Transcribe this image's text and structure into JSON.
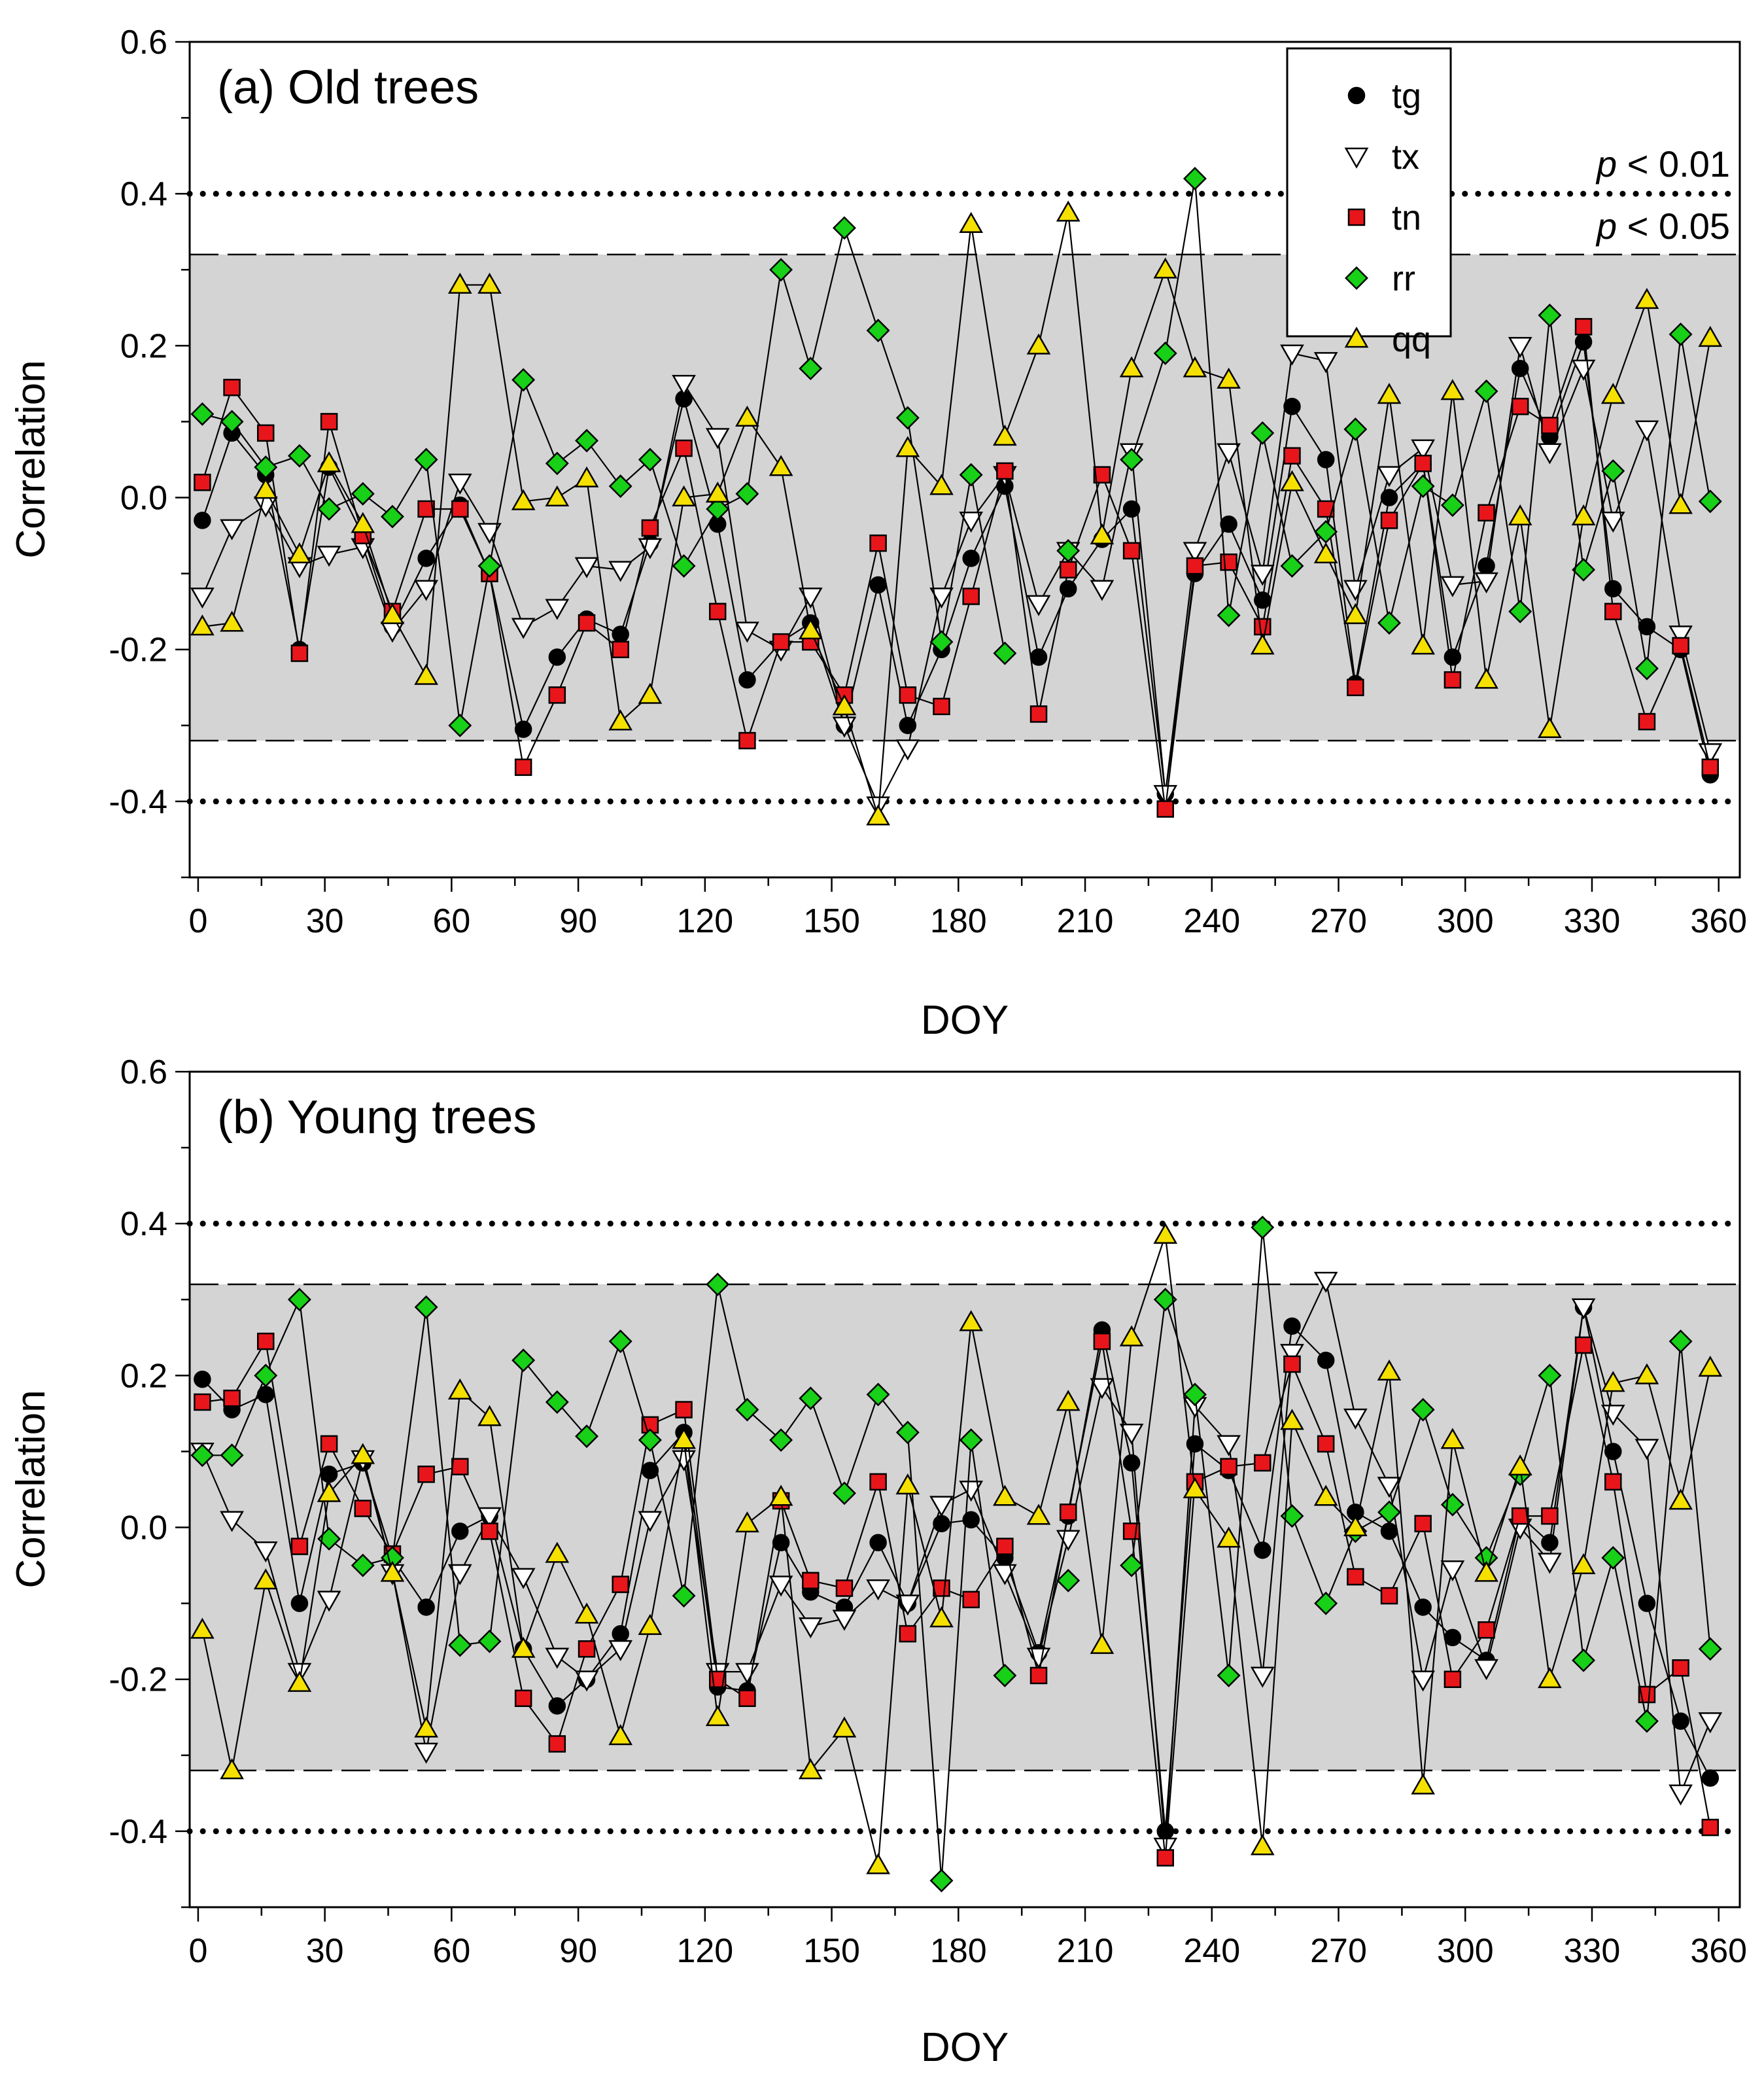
{
  "chart_data": [
    {
      "type": "scatter",
      "title": "(a) Old trees",
      "xlabel": "DOY",
      "ylabel": "Correlation",
      "xlim": [
        -2,
        365
      ],
      "ylim": [
        -0.5,
        0.6
      ],
      "xticks": [
        0,
        30,
        60,
        90,
        120,
        150,
        180,
        210,
        240,
        270,
        300,
        330,
        360
      ],
      "yticks": [
        -0.4,
        -0.2,
        0.0,
        0.2,
        0.4,
        0.6
      ],
      "ytick_labels": [
        "-0.4",
        "-0.2",
        "0.0",
        "0.2",
        "0.4",
        "0.6"
      ],
      "shaded_band": [
        -0.32,
        0.32
      ],
      "sig_lines": [
        {
          "value": 0.4,
          "style": "dotted",
          "label_italic": "p",
          "label_rest": " < 0.01"
        },
        {
          "value": 0.32,
          "style": "dashed",
          "label_italic": "p",
          "label_rest": " < 0.05"
        },
        {
          "value": -0.32,
          "style": "dashed"
        },
        {
          "value": -0.4,
          "style": "dotted"
        }
      ],
      "legend_position": "top-right",
      "x": [
        1,
        8,
        16,
        24,
        31,
        39,
        46,
        54,
        62,
        69,
        77,
        85,
        92,
        100,
        107,
        115,
        123,
        130,
        138,
        145,
        153,
        161,
        168,
        176,
        183,
        191,
        199,
        206,
        214,
        221,
        229,
        236,
        244,
        252,
        259,
        267,
        274,
        282,
        290,
        297,
        305,
        313,
        320,
        328,
        335,
        343,
        351,
        358
      ],
      "series": [
        {
          "name": "tg",
          "marker": "circle",
          "color": "#000000",
          "values": [
            -0.03,
            0.085,
            0.03,
            -0.2,
            0.04,
            -0.05,
            -0.17,
            -0.08,
            -0.01,
            -0.1,
            -0.305,
            -0.21,
            -0.16,
            -0.18,
            -0.06,
            0.13,
            -0.035,
            -0.24,
            -0.19,
            -0.165,
            -0.3,
            -0.115,
            -0.3,
            -0.2,
            -0.08,
            0.015,
            -0.21,
            -0.12,
            -0.055,
            -0.015,
            -0.39,
            -0.1,
            -0.035,
            -0.135,
            0.12,
            0.05,
            -0.245,
            0.0,
            0.045,
            -0.21,
            -0.09,
            0.17,
            0.08,
            0.205,
            -0.12,
            -0.17,
            -0.2,
            -0.365
          ]
        },
        {
          "name": "tx",
          "marker": "triangle-down",
          "color": "#ffffff",
          "values": [
            -0.13,
            -0.04,
            -0.01,
            -0.09,
            -0.075,
            -0.065,
            -0.175,
            -0.12,
            0.02,
            -0.045,
            -0.17,
            -0.145,
            -0.09,
            -0.095,
            -0.065,
            0.15,
            0.08,
            -0.175,
            -0.2,
            -0.13,
            -0.3,
            -0.405,
            -0.33,
            -0.13,
            -0.03,
            0.03,
            -0.14,
            -0.07,
            -0.12,
            0.06,
            -0.39,
            -0.07,
            0.06,
            -0.1,
            0.19,
            0.18,
            -0.12,
            0.03,
            0.065,
            -0.115,
            -0.11,
            0.2,
            0.06,
            0.17,
            -0.03,
            0.09,
            -0.18,
            -0.335
          ]
        },
        {
          "name": "tn",
          "marker": "square",
          "color": "#e8161b",
          "values": [
            0.02,
            0.145,
            0.085,
            -0.205,
            0.1,
            -0.05,
            -0.15,
            -0.015,
            -0.015,
            -0.1,
            -0.355,
            -0.26,
            -0.165,
            -0.2,
            -0.04,
            0.065,
            -0.15,
            -0.32,
            -0.19,
            -0.19,
            -0.26,
            -0.06,
            -0.26,
            -0.275,
            -0.13,
            0.035,
            -0.285,
            -0.095,
            0.03,
            -0.07,
            -0.41,
            -0.09,
            -0.085,
            -0.17,
            0.055,
            -0.015,
            -0.25,
            -0.03,
            0.045,
            -0.24,
            -0.02,
            0.12,
            0.095,
            0.225,
            -0.15,
            -0.295,
            -0.195,
            -0.355
          ]
        },
        {
          "name": "rr",
          "marker": "diamond",
          "color": "#17d017",
          "values": [
            0.11,
            0.1,
            0.04,
            0.055,
            -0.015,
            0.005,
            -0.025,
            0.05,
            -0.3,
            -0.09,
            0.155,
            0.045,
            0.075,
            0.015,
            0.05,
            -0.09,
            -0.015,
            0.005,
            0.3,
            0.17,
            0.355,
            0.22,
            0.105,
            -0.19,
            0.03,
            -0.205,
            null,
            -0.07,
            null,
            0.05,
            0.19,
            0.42,
            -0.155,
            0.085,
            -0.09,
            -0.045,
            0.09,
            -0.165,
            0.015,
            -0.01,
            0.14,
            -0.15,
            0.24,
            -0.095,
            0.035,
            -0.225,
            0.215,
            -0.005
          ]
        },
        {
          "name": "qq",
          "marker": "triangle-up",
          "color": "#f5e000",
          "values": [
            -0.17,
            -0.165,
            0.01,
            -0.075,
            0.045,
            -0.035,
            -0.155,
            -0.235,
            0.28,
            0.28,
            -0.005,
            0.0,
            0.025,
            -0.295,
            -0.26,
            0.0,
            0.005,
            0.105,
            0.04,
            -0.175,
            -0.275,
            -0.42,
            0.065,
            0.015,
            0.36,
            0.08,
            0.2,
            0.375,
            -0.05,
            0.17,
            0.3,
            0.17,
            0.155,
            -0.195,
            0.02,
            -0.075,
            -0.155,
            0.135,
            -0.195,
            0.14,
            -0.24,
            -0.025,
            -0.305,
            -0.025,
            0.135,
            0.26,
            -0.01,
            0.21
          ]
        }
      ]
    },
    {
      "type": "scatter",
      "title": "(b) Young trees",
      "xlabel": "DOY",
      "ylabel": "Correlation",
      "xlim": [
        -2,
        365
      ],
      "ylim": [
        -0.5,
        0.6
      ],
      "xticks": [
        0,
        30,
        60,
        90,
        120,
        150,
        180,
        210,
        240,
        270,
        300,
        330,
        360
      ],
      "yticks": [
        -0.4,
        -0.2,
        0.0,
        0.2,
        0.4,
        0.6
      ],
      "ytick_labels": [
        "-0.4",
        "-0.2",
        "0.0",
        "0.2",
        "0.4",
        "0.6"
      ],
      "shaded_band": [
        -0.32,
        0.32
      ],
      "sig_lines": [
        {
          "value": 0.4,
          "style": "dotted"
        },
        {
          "value": 0.32,
          "style": "dashed"
        },
        {
          "value": -0.32,
          "style": "dashed"
        },
        {
          "value": -0.4,
          "style": "dotted"
        }
      ],
      "x": [
        1,
        8,
        16,
        24,
        31,
        39,
        46,
        54,
        62,
        69,
        77,
        85,
        92,
        100,
        107,
        115,
        123,
        130,
        138,
        145,
        153,
        161,
        168,
        176,
        183,
        191,
        199,
        206,
        214,
        221,
        229,
        236,
        244,
        252,
        259,
        267,
        274,
        282,
        290,
        297,
        305,
        313,
        320,
        328,
        335,
        343,
        351,
        358
      ],
      "series": [
        {
          "name": "tg",
          "marker": "circle",
          "color": "#000000",
          "values": [
            0.195,
            0.155,
            0.175,
            -0.1,
            0.07,
            0.085,
            -0.04,
            -0.105,
            -0.005,
            0.015,
            -0.16,
            -0.235,
            -0.2,
            -0.14,
            0.075,
            0.125,
            -0.21,
            -0.215,
            -0.02,
            -0.085,
            -0.105,
            -0.02,
            -0.1,
            0.005,
            0.01,
            -0.04,
            -0.165,
            0.015,
            0.26,
            0.085,
            -0.4,
            0.11,
            0.075,
            -0.03,
            0.265,
            0.22,
            0.02,
            -0.005,
            -0.105,
            -0.145,
            -0.175,
            0.015,
            -0.02,
            0.29,
            0.1,
            -0.1,
            -0.255,
            -0.33
          ]
        },
        {
          "name": "tx",
          "marker": "triangle-down",
          "color": "#ffffff",
          "values": [
            0.1,
            0.01,
            -0.03,
            -0.19,
            -0.095,
            0.09,
            -0.06,
            -0.295,
            -0.06,
            0.015,
            -0.065,
            -0.17,
            -0.2,
            -0.16,
            0.01,
            0.09,
            -0.19,
            -0.19,
            -0.075,
            -0.13,
            -0.12,
            -0.08,
            -0.1,
            0.03,
            0.05,
            -0.06,
            -0.17,
            -0.015,
            0.185,
            0.125,
            -0.42,
            0.16,
            0.11,
            -0.195,
            0.23,
            0.325,
            0.145,
            0.055,
            -0.2,
            -0.055,
            -0.185,
            0.0,
            -0.045,
            0.29,
            0.15,
            0.105,
            -0.35,
            -0.255
          ]
        },
        {
          "name": "tn",
          "marker": "square",
          "color": "#e8161b",
          "values": [
            0.165,
            0.17,
            0.245,
            -0.025,
            0.11,
            0.025,
            -0.035,
            0.07,
            0.08,
            -0.005,
            -0.225,
            -0.285,
            -0.16,
            -0.075,
            0.135,
            0.155,
            -0.2,
            -0.225,
            0.035,
            -0.07,
            -0.08,
            0.06,
            -0.14,
            -0.08,
            -0.095,
            -0.025,
            -0.195,
            0.02,
            0.245,
            -0.005,
            -0.435,
            0.06,
            0.08,
            0.085,
            0.215,
            0.11,
            -0.065,
            -0.09,
            0.005,
            -0.2,
            -0.135,
            0.015,
            0.015,
            0.24,
            0.06,
            -0.22,
            -0.185,
            -0.395
          ]
        },
        {
          "name": "rr",
          "marker": "diamond",
          "color": "#17d017",
          "values": [
            0.095,
            0.095,
            0.2,
            0.3,
            -0.015,
            -0.05,
            -0.04,
            0.29,
            -0.155,
            -0.15,
            0.22,
            0.165,
            0.12,
            0.245,
            0.115,
            -0.09,
            0.32,
            0.155,
            0.115,
            0.17,
            0.045,
            0.175,
            0.125,
            -0.465,
            0.115,
            -0.195,
            null,
            -0.07,
            null,
            -0.05,
            0.3,
            0.175,
            -0.195,
            0.395,
            0.015,
            -0.1,
            -0.005,
            0.02,
            0.155,
            0.03,
            -0.04,
            0.07,
            0.2,
            -0.175,
            -0.04,
            -0.255,
            0.245,
            -0.16
          ]
        },
        {
          "name": "qq",
          "marker": "triangle-up",
          "color": "#f5e000",
          "values": [
            -0.135,
            -0.32,
            -0.07,
            -0.205,
            0.045,
            0.095,
            -0.06,
            -0.265,
            0.18,
            0.145,
            -0.16,
            -0.035,
            -0.115,
            -0.275,
            -0.13,
            0.115,
            -0.25,
            0.005,
            0.04,
            -0.32,
            -0.265,
            -0.445,
            0.055,
            -0.12,
            0.27,
            0.04,
            0.015,
            0.165,
            -0.155,
            0.25,
            0.385,
            0.05,
            -0.015,
            -0.42,
            0.14,
            0.04,
            0.0,
            0.205,
            -0.34,
            0.115,
            -0.06,
            0.08,
            -0.2,
            -0.05,
            0.19,
            0.2,
            0.035,
            0.21
          ]
        }
      ]
    }
  ]
}
